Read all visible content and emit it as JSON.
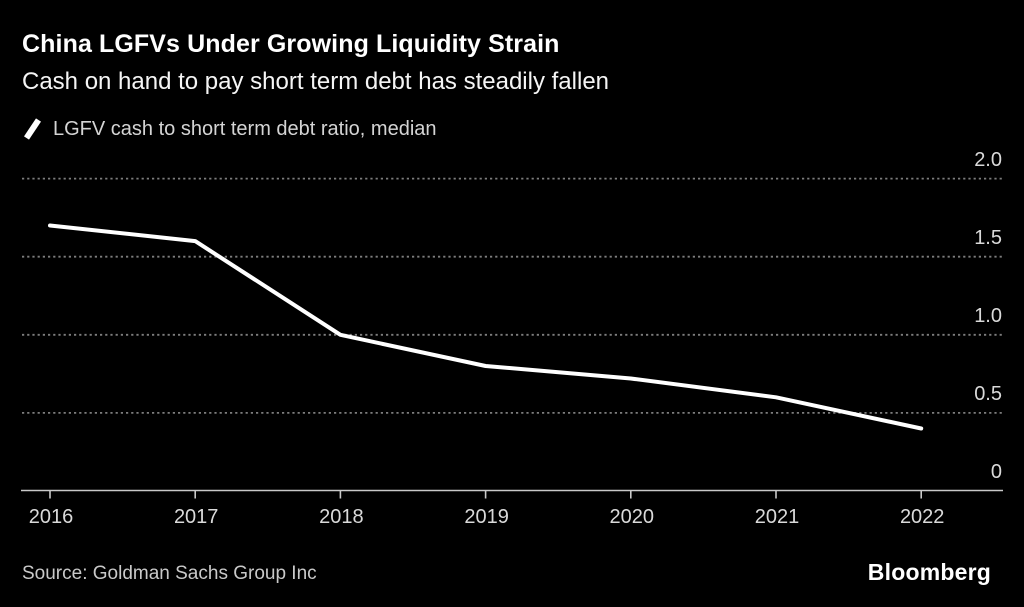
{
  "header": {
    "title": "China LGFVs Under Growing Liquidity Strain",
    "subtitle": "Cash on hand to pay short term debt has steadily fallen"
  },
  "legend": {
    "icon": "line-slash-icon",
    "label": "LGFV cash to short term debt ratio, median"
  },
  "footer": {
    "source": "Source: Goldman Sachs Group Inc",
    "brand": "Bloomberg"
  },
  "colors": {
    "background": "#000000",
    "title": "#ffffff",
    "subtitle": "#f5f5f5",
    "legend_text": "#d4d4d4",
    "axis_text": "#dadada",
    "gridline": "#7d7d7d",
    "axis_line": "#c9c9c9",
    "series_line": "#ffffff",
    "source_text": "#c9c9c9",
    "brand_text": "#ffffff"
  },
  "chart_data": {
    "type": "line",
    "title": "China LGFVs Under Growing Liquidity Strain",
    "subtitle": "Cash on hand to pay short term debt has steadily fallen",
    "x": [
      2016,
      2017,
      2018,
      2019,
      2020,
      2021,
      2022
    ],
    "xticks": [
      "2016",
      "2017",
      "2018",
      "2019",
      "2020",
      "2021",
      "2022"
    ],
    "series": [
      {
        "name": "LGFV cash to short term debt ratio, median",
        "values": [
          1.7,
          1.6,
          1.0,
          0.8,
          0.72,
          0.6,
          0.4
        ],
        "color": "#ffffff"
      }
    ],
    "yticks": [
      0,
      0.5,
      1.0,
      1.5,
      2.0
    ],
    "ytick_labels": [
      "0",
      "0.5",
      "1.0",
      "1.5",
      "2.0"
    ],
    "ylim": [
      0,
      2.0
    ],
    "xlabel": "",
    "ylabel": "",
    "grid": "horizontal-dotted",
    "y_axis_side": "right",
    "legend_position": "top-left"
  }
}
